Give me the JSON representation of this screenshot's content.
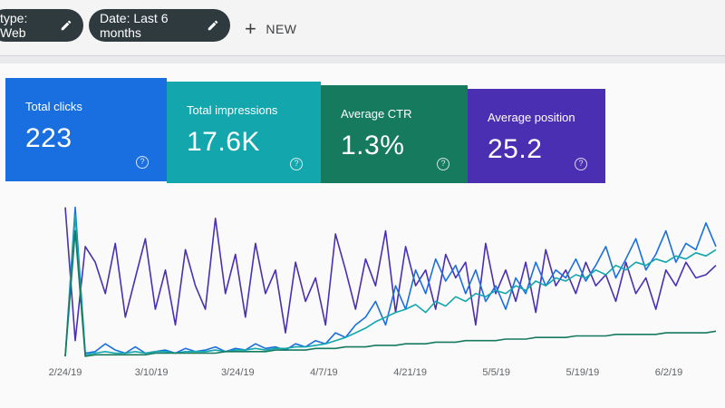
{
  "filters": {
    "type_chip": "type: Web",
    "date_chip": "Date: Last 6 months",
    "new_button": "NEW"
  },
  "metrics": [
    {
      "label": "Total clicks",
      "value": "223",
      "color": "#1a6fe0"
    },
    {
      "label": "Total impressions",
      "value": "17.6K",
      "color": "#13a7ad"
    },
    {
      "label": "Average CTR",
      "value": "1.3%",
      "color": "#157a5e"
    },
    {
      "label": "Average position",
      "value": "25.2",
      "color": "#4b2fb3"
    }
  ],
  "help_glyph": "?",
  "chart_data": {
    "type": "line",
    "x_tick_labels": [
      "2/24/19",
      "3/10/19",
      "3/24/19",
      "4/7/19",
      "4/21/19",
      "5/5/19",
      "5/19/19",
      "6/2/19"
    ],
    "series": [
      {
        "color": "#4b2fb3",
        "values": [
          95,
          10,
          70,
          60,
          40,
          72,
          25,
          50,
          75,
          30,
          55,
          20,
          68,
          45,
          30,
          88,
          40,
          65,
          25,
          72,
          40,
          55,
          15,
          60,
          35,
          50,
          20,
          78,
          55,
          30,
          62,
          45,
          80,
          28,
          70,
          45,
          55,
          30,
          65,
          50,
          60,
          20,
          72,
          40,
          55,
          35,
          60,
          28,
          68,
          45,
          55,
          40,
          60,
          45,
          52,
          35,
          60,
          40,
          50,
          30,
          55,
          45,
          60,
          50,
          52,
          58
        ]
      },
      {
        "color": "#1a6fe0",
        "values": [
          0,
          95,
          2,
          3,
          8,
          4,
          2,
          6,
          2,
          3,
          4,
          2,
          5,
          3,
          4,
          6,
          3,
          5,
          4,
          8,
          5,
          6,
          4,
          8,
          6,
          10,
          8,
          15,
          12,
          20,
          25,
          35,
          20,
          45,
          30,
          55,
          40,
          62,
          48,
          58,
          40,
          55,
          35,
          45,
          30,
          50,
          40,
          60,
          45,
          55,
          50,
          62,
          48,
          58,
          70,
          50,
          62,
          75,
          55,
          65,
          80,
          60,
          72,
          68,
          85,
          70
        ]
      },
      {
        "color": "#13a7ad",
        "values": [
          0,
          90,
          1,
          2,
          3,
          2,
          2,
          3,
          2,
          3,
          3,
          2,
          3,
          3,
          3,
          4,
          3,
          4,
          4,
          5,
          4,
          5,
          5,
          6,
          6,
          7,
          8,
          10,
          12,
          15,
          18,
          22,
          25,
          28,
          30,
          33,
          28,
          35,
          32,
          38,
          35,
          40,
          38,
          42,
          40,
          45,
          42,
          48,
          45,
          50,
          48,
          52,
          50,
          55,
          52,
          58,
          55,
          60,
          58,
          62,
          60,
          64,
          62,
          66,
          64,
          68
        ]
      },
      {
        "color": "#157a5e",
        "values": [
          0,
          80,
          0,
          1,
          1,
          1,
          1,
          1,
          1,
          2,
          2,
          2,
          2,
          2,
          2,
          2,
          3,
          3,
          3,
          3,
          3,
          4,
          4,
          4,
          4,
          5,
          5,
          5,
          6,
          6,
          6,
          7,
          7,
          7,
          8,
          8,
          8,
          9,
          9,
          9,
          10,
          10,
          10,
          10,
          11,
          11,
          11,
          12,
          12,
          12,
          12,
          13,
          13,
          13,
          13,
          14,
          14,
          14,
          14,
          14,
          15,
          15,
          15,
          15,
          15,
          16
        ]
      }
    ]
  }
}
